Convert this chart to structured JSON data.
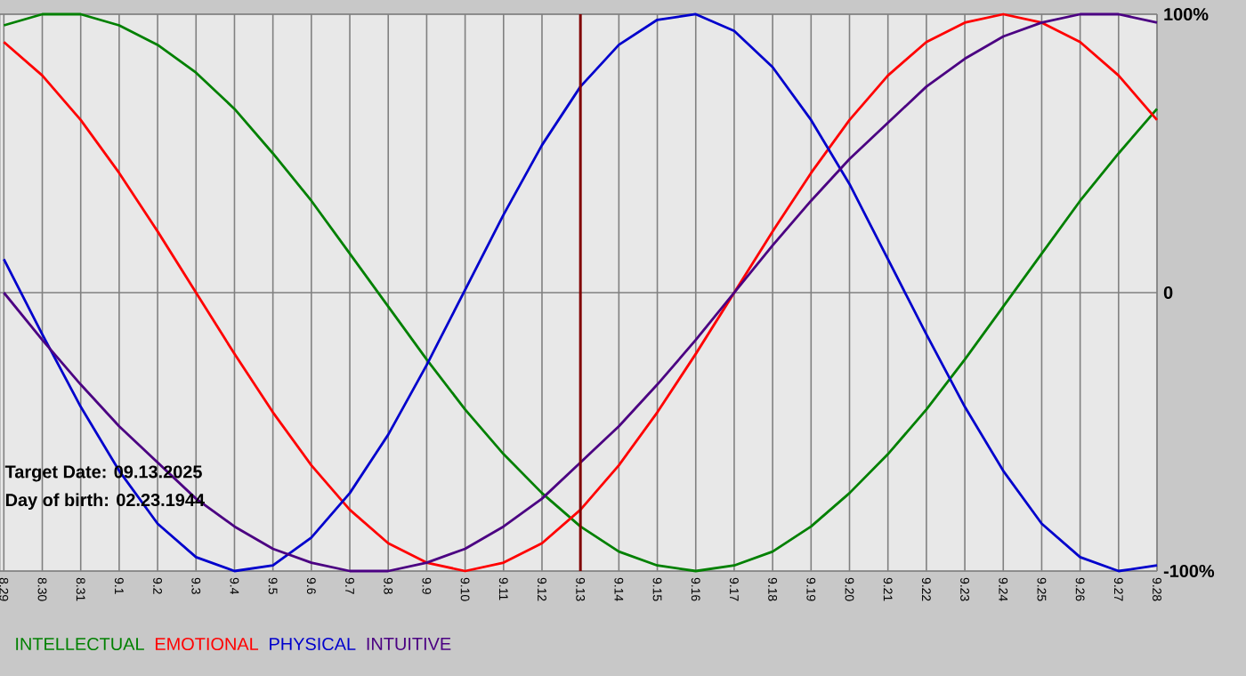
{
  "chart_data": {
    "type": "line",
    "categories": [
      "8.29",
      "8.30",
      "8.31",
      "9.1",
      "9.2",
      "9.3",
      "9.4",
      "9.5",
      "9.6",
      "9.7",
      "9.8",
      "9.9",
      "9.10",
      "9.11",
      "9.12",
      "9.13",
      "9.14",
      "9.15",
      "9.16",
      "9.17",
      "9.18",
      "9.19",
      "9.20",
      "9.21",
      "9.22",
      "9.23",
      "9.24",
      "9.25",
      "9.26",
      "9.27",
      "9.28"
    ],
    "series": [
      {
        "name": "INTELLECTUAL",
        "color": "#008000",
        "values": [
          96,
          100,
          100,
          96,
          89,
          79,
          66,
          50,
          33,
          14,
          -5,
          -24,
          -42,
          -58,
          -72,
          -84,
          -93,
          -98,
          -100,
          -98,
          -93,
          -84,
          -72,
          -58,
          -42,
          -24,
          -5,
          14,
          33,
          50,
          66
        ]
      },
      {
        "name": "EMOTIONAL",
        "color": "#ff0000",
        "values": [
          90,
          78,
          62,
          43,
          22,
          0,
          -22,
          -43,
          -62,
          -78,
          -90,
          -97,
          -100,
          -97,
          -90,
          -78,
          -62,
          -43,
          -22,
          0,
          22,
          43,
          62,
          78,
          90,
          97,
          100,
          97,
          90,
          78,
          62
        ]
      },
      {
        "name": "PHYSICAL",
        "color": "#0000cc",
        "values": [
          12,
          -15,
          -41,
          -64,
          -83,
          -95,
          -100,
          -98,
          -88,
          -72,
          -51,
          -26,
          1,
          28,
          53,
          74,
          89,
          98,
          100,
          94,
          81,
          62,
          39,
          12,
          -15,
          -41,
          -64,
          -83,
          -95,
          -100,
          -98
        ]
      },
      {
        "name": "INTUITIVE",
        "color": "#4b0082",
        "values": [
          0,
          -17,
          -33,
          -48,
          -61,
          -74,
          -84,
          -92,
          -97,
          -100,
          -100,
          -97,
          -92,
          -84,
          -74,
          -61,
          -48,
          -33,
          -17,
          0,
          17,
          33,
          48,
          61,
          74,
          84,
          92,
          97,
          100,
          100,
          97
        ]
      }
    ],
    "ylim": [
      -100,
      100
    ],
    "yticks": [
      {
        "value": -100,
        "label": "-100%"
      },
      0,
      {
        "value": 100,
        "label": "100%"
      }
    ],
    "grid": true,
    "legend": "bottom",
    "marker": "none",
    "line_style": "solid",
    "ref_lines": [
      {
        "axis": "x",
        "value": "9.13",
        "color": "#800000"
      }
    ],
    "annotations": [
      "Target Date: 09.13.2025",
      "Day of birth: 02.23.1944"
    ]
  }
}
